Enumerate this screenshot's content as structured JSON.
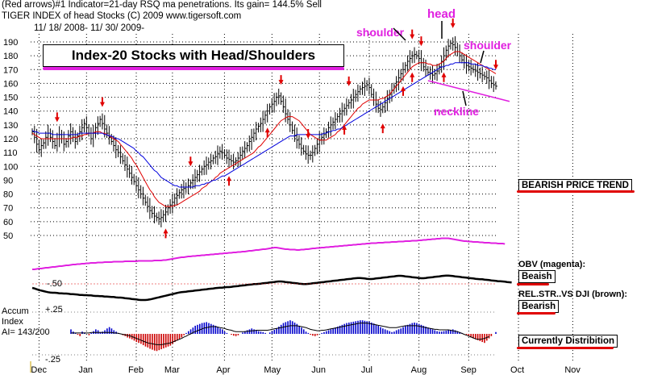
{
  "header": {
    "line1": "(Red arrows)#1 Indicator=21-day RSQ ma penetrations.  Its gain= 144.5% Sell",
    "line2": "TIGER INDEX of head Stocks   (C) 2009   www.tigersoft.com",
    "line3": "11/ 18/ 2008- 11/ 30/ 2009-"
  },
  "title_box": "Index-20 Stocks with Head/Shoulders",
  "annotations": {
    "head": "head",
    "shoulder_left": "shoulder",
    "shoulder_right": "shoulder",
    "neckline": "neckline"
  },
  "side_labels": {
    "trend": "BEARISH PRICE TREND",
    "obv_label": "OBV (magenta):",
    "obv_value": "Beaish",
    "rel_label": "REL.STR..VS DJI (brown):",
    "rel_value": "Bearish",
    "distribution": "Currently Distribition"
  },
  "accum_labels": {
    "title": "Accum",
    "title2": "Index",
    "ai": "AI= 143/200",
    "plus": "+.25",
    "minus": "-.25",
    "rel_mark": "-.50"
  },
  "colors": {
    "price": "#000000",
    "ma21": "#e00000",
    "ma50": "#0000dd",
    "obv": "#e020e0",
    "accent_magenta": "#e020e0",
    "arrow": "#e00000",
    "accum_pos": "#0000cc",
    "accum_neg": "#cc0000"
  },
  "chart_data": {
    "type": "line",
    "title": "TIGER INDEX of head Stocks",
    "xlabel": "",
    "ylabel": "",
    "ylim": [
      50,
      190
    ],
    "y_ticks": [
      190,
      180,
      170,
      160,
      150,
      140,
      130,
      120,
      110,
      100,
      90,
      80,
      70,
      60,
      50
    ],
    "x_ticks": [
      "Dec",
      "Jan",
      "Feb",
      "Mar",
      "Apr",
      "May",
      "Jun",
      "Jul",
      "Aug",
      "Sep",
      "Oct",
      "Nov"
    ],
    "x_tick_index": [
      3,
      24,
      46,
      62,
      85,
      106,
      127,
      149,
      171,
      193,
      215,
      239
    ],
    "grid": true,
    "close_series": [
      125,
      121,
      116,
      112,
      115,
      117,
      121,
      124,
      121,
      118,
      115,
      120,
      123,
      120,
      116,
      118,
      122,
      125,
      121,
      118,
      122,
      125,
      128,
      131,
      128,
      124,
      120,
      124,
      128,
      131,
      134,
      131,
      127,
      124,
      121,
      118,
      115,
      112,
      110,
      107,
      104,
      101,
      98,
      95,
      92,
      89,
      86,
      83,
      80,
      77,
      74,
      71,
      68,
      66,
      64,
      63,
      62,
      63,
      65,
      67,
      70,
      72,
      74,
      77,
      79,
      81,
      83,
      84,
      85,
      86,
      88,
      90,
      92,
      94,
      96,
      98,
      100,
      101,
      103,
      104,
      106,
      107,
      109,
      111,
      110,
      108,
      106,
      105,
      104,
      103,
      104,
      106,
      108,
      111,
      113,
      115,
      118,
      121,
      124,
      127,
      129,
      131,
      134,
      137,
      140,
      143,
      145,
      147,
      150,
      151,
      147,
      143,
      138,
      134,
      130,
      126,
      122,
      119,
      116,
      113,
      111,
      109,
      108,
      108,
      110,
      113,
      116,
      119,
      121,
      123,
      125,
      128,
      130,
      132,
      134,
      136,
      138,
      140,
      142,
      144,
      146,
      148,
      150,
      152,
      154,
      156,
      157,
      158,
      159,
      157,
      152,
      148,
      145,
      142,
      141,
      143,
      146,
      149,
      152,
      155,
      158,
      161,
      164,
      167,
      170,
      173,
      176,
      178,
      180,
      181,
      180,
      178,
      175,
      172,
      170,
      168,
      167,
      166,
      167,
      169,
      172,
      176,
      180,
      184,
      187,
      189,
      188,
      186,
      183,
      180,
      177,
      175,
      173,
      172,
      171,
      170,
      169,
      168,
      167,
      166,
      165,
      164,
      162,
      160,
      159,
      158
    ],
    "ma21": [
      124,
      123,
      122,
      121,
      120,
      120,
      120,
      120,
      120,
      120,
      120,
      120,
      120,
      120,
      120,
      120,
      120,
      120,
      121,
      121,
      121,
      122,
      122,
      123,
      123,
      124,
      124,
      124,
      125,
      125,
      125,
      124,
      124,
      123,
      122,
      121,
      120,
      119,
      118,
      116,
      114,
      112,
      110,
      108,
      106,
      103,
      101,
      98,
      95,
      92,
      89,
      86,
      83,
      81,
      78,
      76,
      74,
      73,
      72,
      71,
      71,
      71,
      71,
      72,
      72,
      73,
      74,
      75,
      76,
      77,
      78,
      79,
      80,
      81,
      82,
      84,
      85,
      86,
      88,
      89,
      90,
      92,
      93,
      95,
      96,
      97,
      98,
      99,
      100,
      101,
      102,
      103,
      104,
      105,
      106,
      107,
      108,
      109,
      110,
      112,
      114,
      115,
      117,
      119,
      121,
      123,
      125,
      127,
      129,
      131,
      133,
      134,
      135,
      136,
      136,
      136,
      135,
      134,
      133,
      131,
      129,
      127,
      125,
      123,
      122,
      121,
      120,
      119,
      119,
      119,
      119,
      120,
      121,
      122,
      123,
      125,
      126,
      128,
      130,
      132,
      134,
      136,
      138,
      140,
      142,
      143,
      145,
      146,
      147,
      148,
      148,
      148,
      148,
      148,
      149,
      149,
      150,
      151,
      152,
      154,
      156,
      158,
      160,
      162,
      164,
      166,
      168,
      170,
      172,
      173,
      174,
      175,
      175,
      175,
      175,
      174,
      174,
      173,
      173,
      173,
      174,
      175,
      176,
      178,
      180,
      181,
      182,
      183,
      183,
      183,
      182,
      181,
      180,
      179,
      178,
      177,
      176,
      175,
      174,
      173,
      172,
      171,
      170,
      169,
      168,
      167
    ],
    "ma50": [
      126,
      125,
      125,
      124,
      124,
      124,
      124,
      124,
      124,
      123,
      123,
      123,
      123,
      123,
      123,
      123,
      123,
      123,
      123,
      123,
      123,
      124,
      124,
      124,
      124,
      124,
      124,
      124,
      124,
      124,
      124,
      124,
      123,
      123,
      122,
      122,
      121,
      120,
      120,
      119,
      118,
      117,
      116,
      115,
      114,
      113,
      111,
      110,
      108,
      107,
      105,
      103,
      101,
      99,
      97,
      96,
      94,
      92,
      91,
      90,
      89,
      88,
      87,
      86,
      86,
      85,
      85,
      85,
      85,
      85,
      85,
      85,
      86,
      86,
      86,
      87,
      87,
      88,
      88,
      89,
      90,
      90,
      91,
      92,
      93,
      93,
      94,
      95,
      96,
      97,
      98,
      99,
      100,
      101,
      102,
      103,
      104,
      105,
      106,
      107,
      108,
      109,
      110,
      111,
      112,
      113,
      114,
      115,
      116,
      117,
      118,
      119,
      120,
      121,
      122,
      122,
      122,
      123,
      123,
      123,
      123,
      123,
      123,
      123,
      123,
      123,
      123,
      123,
      123,
      124,
      124,
      125,
      125,
      126,
      126,
      127,
      127,
      128,
      129,
      130,
      131,
      132,
      133,
      134,
      135,
      136,
      137,
      138,
      139,
      140,
      141,
      142,
      143,
      144,
      145,
      146,
      147,
      148,
      149,
      150,
      151,
      152,
      153,
      154,
      155,
      156,
      157,
      158,
      159,
      160,
      161,
      162,
      163,
      164,
      165,
      166,
      167,
      168,
      169,
      170,
      171,
      172,
      172,
      173,
      173,
      174,
      174,
      175,
      175,
      175,
      175,
      175,
      175,
      175,
      174,
      174,
      174,
      173,
      173,
      173,
      172,
      172,
      171,
      171,
      170,
      170
    ],
    "neckline": [
      [
        175,
        162
      ],
      [
        250,
        147
      ]
    ],
    "sell_arrows": [
      11,
      31,
      70,
      110,
      122,
      140,
      168,
      172,
      186,
      205,
      224
    ],
    "buy_arrows": [
      59,
      87,
      104,
      138,
      155,
      164,
      168,
      182,
      210
    ],
    "obv": [
      0.2,
      0.2,
      0.21,
      0.22,
      0.22,
      0.23,
      0.24,
      0.24,
      0.25,
      0.26,
      0.26,
      0.27,
      0.28,
      0.28,
      0.29,
      0.3,
      0.3,
      0.31,
      0.32,
      0.32,
      0.33,
      0.33,
      0.34,
      0.34,
      0.35,
      0.35,
      0.36,
      0.36,
      0.36,
      0.37,
      0.37,
      0.37,
      0.38,
      0.38,
      0.38,
      0.38,
      0.39,
      0.39,
      0.39,
      0.39,
      0.39,
      0.4,
      0.4,
      0.4,
      0.4,
      0.4,
      0.4,
      0.41,
      0.41,
      0.41,
      0.41,
      0.41,
      0.41,
      0.41,
      0.42,
      0.42,
      0.42,
      0.42,
      0.43,
      0.43,
      0.44,
      0.45,
      0.46,
      0.47,
      0.48,
      0.49,
      0.5,
      0.5,
      0.51,
      0.52,
      0.52,
      0.53,
      0.53,
      0.54,
      0.54,
      0.55,
      0.55,
      0.56,
      0.56,
      0.57,
      0.57,
      0.58,
      0.58,
      0.59,
      0.59,
      0.6,
      0.6,
      0.61,
      0.61,
      0.62,
      0.62,
      0.63,
      0.63,
      0.64,
      0.64,
      0.65,
      0.66,
      0.66,
      0.67,
      0.68,
      0.68,
      0.69,
      0.7,
      0.7,
      0.71,
      0.72,
      0.73,
      0.74,
      0.74,
      0.73,
      0.72,
      0.71,
      0.7,
      0.7,
      0.69,
      0.69,
      0.69,
      0.68,
      0.68,
      0.69,
      0.69,
      0.7,
      0.7,
      0.71,
      0.72,
      0.72,
      0.73,
      0.73,
      0.74,
      0.74,
      0.75,
      0.75,
      0.76,
      0.76,
      0.77,
      0.77,
      0.78,
      0.78,
      0.79,
      0.79,
      0.8,
      0.8,
      0.81,
      0.81,
      0.82,
      0.82,
      0.83,
      0.83,
      0.84,
      0.84,
      0.85,
      0.85,
      0.85,
      0.86,
      0.86,
      0.86,
      0.87,
      0.87,
      0.87,
      0.88,
      0.88,
      0.88,
      0.89,
      0.89,
      0.89,
      0.9,
      0.9,
      0.9,
      0.91,
      0.91,
      0.91,
      0.92,
      0.92,
      0.93,
      0.93,
      0.94,
      0.94,
      0.95,
      0.95,
      0.96,
      0.96,
      0.97,
      0.97,
      0.97,
      0.97,
      0.96,
      0.95,
      0.94,
      0.93,
      0.92,
      0.91,
      0.9,
      0.9,
      0.89,
      0.89,
      0.88,
      0.88,
      0.88,
      0.87,
      0.87,
      0.86,
      0.86,
      0.86,
      0.85,
      0.85,
      0.85,
      0.84,
      0.84,
      0.84,
      0.83
    ],
    "relstr": [
      0.5,
      0.48,
      0.45,
      0.42,
      0.4,
      0.38,
      0.36,
      0.34,
      0.33,
      0.32,
      0.32,
      0.31,
      0.3,
      0.3,
      0.29,
      0.29,
      0.28,
      0.27,
      0.27,
      0.26,
      0.25,
      0.24,
      0.24,
      0.23,
      0.23,
      0.22,
      0.22,
      0.21,
      0.2,
      0.2,
      0.19,
      0.19,
      0.18,
      0.18,
      0.17,
      0.16,
      0.16,
      0.15,
      0.14,
      0.14,
      0.13,
      0.12,
      0.11,
      0.1,
      0.09,
      0.08,
      0.07,
      0.06,
      0.05,
      0.05,
      0.05,
      0.06,
      0.07,
      0.09,
      0.11,
      0.13,
      0.15,
      0.17,
      0.19,
      0.21,
      0.23,
      0.25,
      0.27,
      0.29,
      0.31,
      0.33,
      0.34,
      0.35,
      0.36,
      0.37,
      0.38,
      0.39,
      0.4,
      0.41,
      0.42,
      0.43,
      0.44,
      0.45,
      0.46,
      0.47,
      0.48,
      0.49,
      0.5,
      0.51,
      0.51,
      0.52,
      0.53,
      0.53,
      0.54,
      0.55,
      0.56,
      0.57,
      0.58,
      0.59,
      0.6,
      0.61,
      0.62,
      0.63,
      0.64,
      0.64,
      0.65,
      0.66,
      0.67,
      0.68,
      0.69,
      0.7,
      0.71,
      0.72,
      0.73,
      0.74,
      0.74,
      0.73,
      0.72,
      0.71,
      0.7,
      0.69,
      0.68,
      0.67,
      0.66,
      0.65,
      0.64,
      0.64,
      0.65,
      0.66,
      0.67,
      0.68,
      0.69,
      0.7,
      0.71,
      0.72,
      0.73,
      0.74,
      0.75,
      0.76,
      0.77,
      0.78,
      0.79,
      0.8,
      0.81,
      0.82,
      0.83,
      0.84,
      0.85,
      0.86,
      0.87,
      0.87,
      0.86,
      0.85,
      0.84,
      0.83,
      0.83,
      0.84,
      0.85,
      0.86,
      0.87,
      0.88,
      0.89,
      0.9,
      0.91,
      0.92,
      0.93,
      0.94,
      0.95,
      0.95,
      0.94,
      0.93,
      0.92,
      0.91,
      0.9,
      0.89,
      0.88,
      0.87,
      0.86,
      0.86,
      0.87,
      0.88,
      0.89,
      0.9,
      0.91,
      0.92,
      0.93,
      0.94,
      0.95,
      0.96,
      0.96,
      0.95,
      0.94,
      0.93,
      0.92,
      0.91,
      0.9,
      0.89,
      0.88,
      0.87,
      0.86,
      0.85,
      0.84,
      0.83,
      0.82,
      0.82,
      0.81,
      0.8,
      0.79,
      0.78,
      0.77,
      0.76,
      0.75,
      0.75,
      0.74,
      0.73,
      0.72,
      0.71,
      0.7
    ],
    "accum": [
      0.1,
      0.05,
      0.02,
      -0.02,
      -0.05,
      0.05,
      0.03,
      0.0,
      -0.03,
      0.02,
      0.06,
      0.1,
      0.08,
      0.04,
      0.05,
      0.08,
      0.12,
      0.15,
      0.12,
      0.08,
      0.05,
      0.02,
      0.0,
      -0.03,
      -0.05,
      -0.08,
      -0.1,
      -0.12,
      -0.15,
      -0.18,
      -0.2,
      -0.22,
      -0.25,
      -0.28,
      -0.3,
      -0.33,
      -0.35,
      -0.37,
      -0.38,
      -0.36,
      -0.34,
      -0.32,
      -0.3,
      -0.28,
      -0.26,
      -0.22,
      -0.18,
      -0.15,
      -0.12,
      -0.08,
      -0.03,
      0.02,
      0.06,
      0.1,
      0.14,
      0.18,
      0.2,
      0.22,
      0.24,
      0.25,
      0.26,
      0.24,
      0.22,
      0.2,
      0.18,
      0.15,
      0.12,
      0.1,
      0.05,
      0.02,
      0.0,
      -0.02,
      -0.04,
      -0.05,
      -0.03,
      0.0,
      0.03,
      0.06,
      0.08,
      0.1,
      0.12,
      0.1,
      0.08,
      0.06,
      0.05,
      0.04,
      0.02,
      0.0,
      0.03,
      0.06,
      0.09,
      0.12,
      0.16,
      0.2,
      0.24,
      0.26,
      0.28,
      0.3,
      0.28,
      0.25,
      0.22,
      0.18,
      0.14,
      0.1,
      0.05,
      0.02,
      -0.02,
      -0.04,
      -0.05,
      -0.03,
      0.0,
      0.02,
      0.04,
      0.06,
      0.08,
      0.1,
      0.12,
      0.14,
      0.16,
      0.18,
      0.2,
      0.22,
      0.24,
      0.25,
      0.26,
      0.27,
      0.28,
      0.29,
      0.3,
      0.3,
      0.29,
      0.28,
      0.27,
      0.25,
      0.23,
      0.2,
      0.18,
      0.15,
      0.12,
      0.1,
      0.08,
      0.06,
      0.04,
      0.05,
      0.08,
      0.1,
      0.12,
      0.15,
      0.18,
      0.2,
      0.22,
      0.24,
      0.25,
      0.24,
      0.22,
      0.2,
      0.18,
      0.16,
      0.14,
      0.12,
      0.1,
      0.08,
      0.06,
      0.05,
      0.05,
      0.06,
      0.07,
      0.08,
      0.09,
      0.1,
      0.08,
      0.06,
      0.04,
      0.02,
      0.0,
      -0.02,
      -0.05,
      -0.08,
      -0.1,
      -0.12,
      -0.14,
      -0.16,
      -0.18,
      -0.2,
      -0.15,
      -0.1,
      -0.05,
      0.0,
      0.04
    ],
    "accum_ma": [
      0.02,
      0.02,
      0.02,
      0.02,
      0.02,
      0.02,
      0.02,
      0.02,
      0.02,
      0.03,
      0.03,
      0.03,
      0.03,
      0.03,
      0.03,
      0.03,
      0.03,
      0.03,
      0.03,
      0.02,
      0.02,
      0.01,
      0.0,
      -0.01,
      -0.02,
      -0.03,
      -0.04,
      -0.06,
      -0.08,
      -0.1,
      -0.12,
      -0.14,
      -0.16,
      -0.18,
      -0.2,
      -0.21,
      -0.22,
      -0.23,
      -0.24,
      -0.24,
      -0.24,
      -0.23,
      -0.22,
      -0.21,
      -0.2,
      -0.18,
      -0.16,
      -0.14,
      -0.12,
      -0.1,
      -0.07,
      -0.05,
      -0.02,
      0.0,
      0.03,
      0.05,
      0.07,
      0.09,
      0.11,
      0.13,
      0.14,
      0.15,
      0.16,
      0.16,
      0.16,
      0.15,
      0.14,
      0.13,
      0.12,
      0.1,
      0.09,
      0.08,
      0.06,
      0.05,
      0.05,
      0.05,
      0.05,
      0.05,
      0.06,
      0.06,
      0.07,
      0.07,
      0.08,
      0.08,
      0.08,
      0.08,
      0.08,
      0.08,
      0.09,
      0.1,
      0.11,
      0.12,
      0.13,
      0.14,
      0.15,
      0.16,
      0.17,
      0.18,
      0.18,
      0.18,
      0.18,
      0.17,
      0.16,
      0.15,
      0.14,
      0.12,
      0.1,
      0.09,
      0.08,
      0.07,
      0.07,
      0.08,
      0.08,
      0.09,
      0.1,
      0.11,
      0.12,
      0.13,
      0.14,
      0.15,
      0.16,
      0.17,
      0.18,
      0.19,
      0.2,
      0.21,
      0.22,
      0.23,
      0.24,
      0.24,
      0.24,
      0.24,
      0.23,
      0.22,
      0.21,
      0.2,
      0.19,
      0.18,
      0.17,
      0.16,
      0.15,
      0.14,
      0.14,
      0.14,
      0.14,
      0.15,
      0.16,
      0.17,
      0.18,
      0.18,
      0.18,
      0.18,
      0.18,
      0.18,
      0.17,
      0.16,
      0.15,
      0.14,
      0.13,
      0.12,
      0.11,
      0.1,
      0.1,
      0.09,
      0.09,
      0.09,
      0.09,
      0.09,
      0.08,
      0.07,
      0.06,
      0.05,
      0.03,
      0.01,
      -0.01,
      -0.03,
      -0.05,
      -0.07,
      -0.09,
      -0.11,
      -0.12,
      -0.12,
      -0.11,
      -0.1,
      -0.08,
      -0.06
    ]
  }
}
